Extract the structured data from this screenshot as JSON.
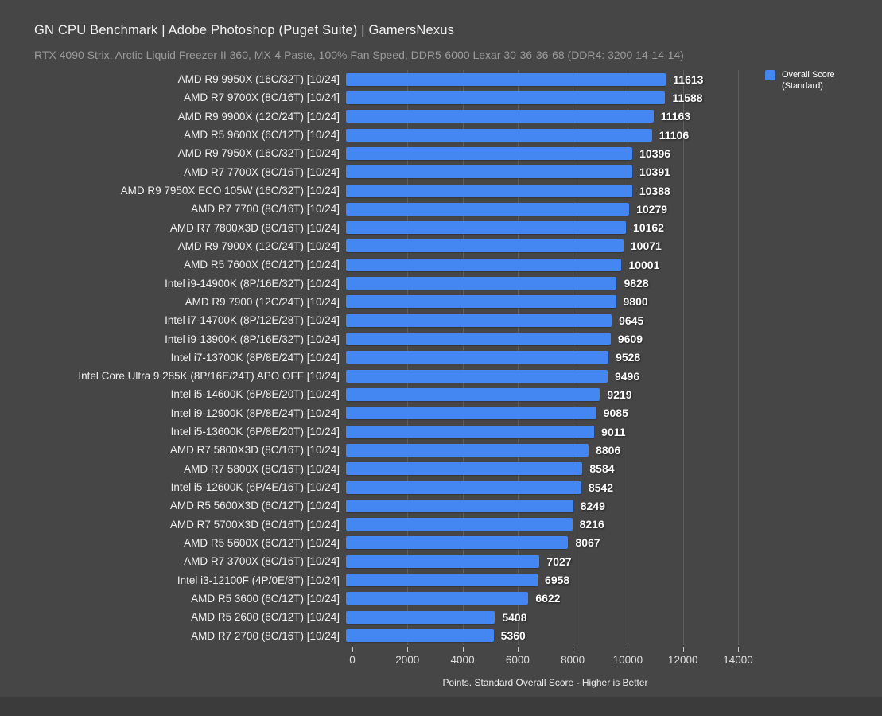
{
  "colors": {
    "background": "#464646",
    "bar": "#4486f2",
    "gridline": "#5d5d5d",
    "footer_strip": "#3b3b3b"
  },
  "legend": {
    "line1": "Overall Score",
    "line2": "(Standard)"
  },
  "chart_data": {
    "type": "bar",
    "orientation": "horizontal",
    "title": "GN CPU Benchmark | Adobe Photoshop (Puget Suite) | GamersNexus",
    "subtitle": "RTX 4090 Strix, Arctic Liquid Freezer II 360, MX-4 Paste, 100% Fan Speed, DDR5-6000 Lexar 30-36-36-68 (DDR4: 3200 14-14-14)",
    "xlabel": "Points. Standard Overall Score - Higher is Better",
    "legend": [
      "Overall Score (Standard)"
    ],
    "legend_position": "top-right",
    "grid": "vertical",
    "xticks": [
      0,
      2000,
      4000,
      6000,
      8000,
      10000,
      12000,
      14000
    ],
    "xlim": [
      0,
      14635
    ],
    "categories": [
      "AMD R9 9950X (16C/32T) [10/24]",
      "AMD R7 9700X (8C/16T) [10/24]",
      "AMD R9 9900X (12C/24T) [10/24]",
      "AMD R5 9600X (6C/12T) [10/24]",
      "AMD R9 7950X (16C/32T) [10/24]",
      "AMD R7 7700X (8C/16T) [10/24]",
      "AMD R9 7950X ECO 105W (16C/32T) [10/24]",
      "AMD R7 7700 (8C/16T) [10/24]",
      "AMD R7 7800X3D (8C/16T) [10/24]",
      "AMD R9 7900X (12C/24T) [10/24]",
      "AMD R5 7600X (6C/12T) [10/24]",
      "Intel i9-14900K (8P/16E/32T) [10/24]",
      "AMD R9 7900 (12C/24T) [10/24]",
      "Intel i7-14700K (8P/12E/28T) [10/24]",
      "Intel i9-13900K (8P/16E/32T) [10/24]",
      "Intel i7-13700K (8P/8E/24T) [10/24]",
      "Intel Core Ultra 9 285K (8P/16E/24T) APO OFF [10/24]",
      "Intel i5-14600K (6P/8E/20T) [10/24]",
      "Intel i9-12900K (8P/8E/24T) [10/24]",
      "Intel i5-13600K (6P/8E/20T) [10/24]",
      "AMD R7 5800X3D (8C/16T) [10/24]",
      "AMD R7 5800X (8C/16T) [10/24]",
      "Intel i5-12600K (6P/4E/16T) [10/24]",
      "AMD R5 5600X3D (6C/12T) [10/24]",
      "AMD R7 5700X3D (8C/16T) [10/24]",
      "AMD R5 5600X (6C/12T) [10/24]",
      "AMD R7 3700X (8C/16T) [10/24]",
      "Intel i3-12100F (4P/0E/8T) [10/24]",
      "AMD R5 3600 (6C/12T) [10/24]",
      "AMD R5 2600 (6C/12T) [10/24]",
      "AMD R7 2700 (8C/16T) [10/24]"
    ],
    "values": [
      11613,
      11588,
      11163,
      11106,
      10396,
      10391,
      10388,
      10279,
      10162,
      10071,
      10001,
      9828,
      9800,
      9645,
      9609,
      9528,
      9496,
      9219,
      9085,
      9011,
      8806,
      8584,
      8542,
      8249,
      8216,
      8067,
      7027,
      6958,
      6622,
      5408,
      5360
    ]
  }
}
